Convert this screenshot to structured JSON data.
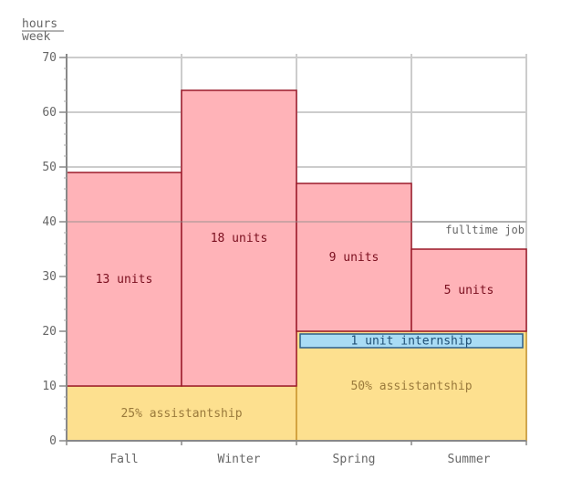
{
  "chart_data": {
    "type": "bar",
    "ylabel_top": "hours",
    "ylabel_bottom": "week",
    "ylim": [
      0,
      70
    ],
    "yticks": [
      0,
      10,
      20,
      30,
      40,
      50,
      60,
      70
    ],
    "categories": [
      "Fall",
      "Winter",
      "Spring",
      "Summer"
    ],
    "grid": true,
    "reference_line": {
      "value": 40,
      "label": "fulltime job"
    },
    "assistantships": [
      {
        "label": "25% assistantship",
        "from": 0,
        "to": 1,
        "y0": 0,
        "y1": 10
      },
      {
        "label": "50% assistantship",
        "from": 2,
        "to": 3,
        "y0": 0,
        "y1": 20
      }
    ],
    "internship": {
      "label": "1 unit internship",
      "from": 2,
      "to": 3,
      "y0": 17,
      "y1": 19.5
    },
    "coursework": [
      {
        "category": "Fall",
        "label": "13 units",
        "y0": 10,
        "y1": 49
      },
      {
        "category": "Winter",
        "label": "18 units",
        "y0": 10,
        "y1": 64
      },
      {
        "category": "Spring",
        "label": "9 units",
        "y0": 20,
        "y1": 47
      },
      {
        "category": "Summer",
        "label": "5 units",
        "y0": 20,
        "y1": 35
      }
    ],
    "colors": {
      "coursework_fill": "#ffb3b8",
      "coursework_stroke": "#9b1b2a",
      "assistantship_fill": "#fde08f",
      "assistantship_stroke": "#c9962e",
      "internship_fill": "#a9dcf5",
      "internship_stroke": "#2c5f8a",
      "grid": "#cccccc",
      "axis": "#888888"
    }
  }
}
